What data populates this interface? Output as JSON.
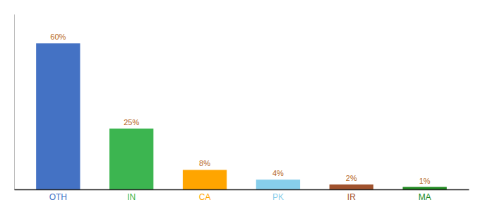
{
  "chart_data": {
    "type": "bar",
    "categories": [
      "OTH",
      "IN",
      "CA",
      "PK",
      "IR",
      "MA"
    ],
    "values": [
      60,
      25,
      8,
      4,
      2,
      1
    ],
    "value_labels": [
      "60%",
      "25%",
      "8%",
      "4%",
      "2%",
      "1%"
    ],
    "colors": [
      "#4472C4",
      "#3CB550",
      "#FFA500",
      "#87CEEB",
      "#A0522D",
      "#228B22"
    ],
    "ylim": [
      0,
      72
    ],
    "data_labels": true,
    "tick_labels": "x"
  }
}
